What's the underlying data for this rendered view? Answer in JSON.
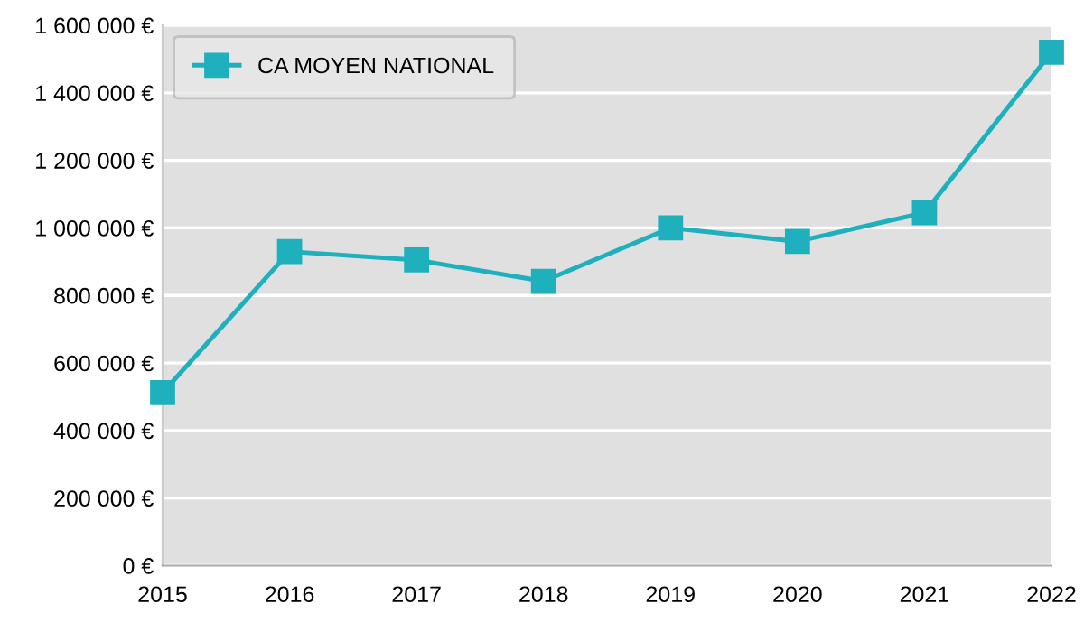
{
  "chart_data": {
    "type": "line",
    "x": [
      2015,
      2016,
      2017,
      2018,
      2019,
      2020,
      2021,
      2022
    ],
    "series": [
      {
        "name": "CA MOYEN NATIONAL",
        "color": "#1fb0be",
        "values": [
          512000,
          930000,
          905000,
          842000,
          1000000,
          960000,
          1045000,
          1520000
        ]
      }
    ],
    "xlim": [
      2015,
      2022
    ],
    "xticks": [
      2015,
      2016,
      2017,
      2018,
      2019,
      2020,
      2021,
      2022
    ],
    "ylim": [
      0,
      1600000
    ],
    "yticks": [
      {
        "value": 0,
        "label": "0 €"
      },
      {
        "value": 200000,
        "label": "200 000 €"
      },
      {
        "value": 400000,
        "label": "400 000 €"
      },
      {
        "value": 600000,
        "label": "600 000 €"
      },
      {
        "value": 800000,
        "label": "800 000 €"
      },
      {
        "value": 1000000,
        "label": "1 000 000 €"
      },
      {
        "value": 1200000,
        "label": "1 200 000 €"
      },
      {
        "value": 1400000,
        "label": "1 400 000 €"
      },
      {
        "value": 1600000,
        "label": "1 600 000 €"
      }
    ],
    "grid": "y",
    "legend": "top left",
    "marker": "square",
    "line_style": "solid"
  }
}
